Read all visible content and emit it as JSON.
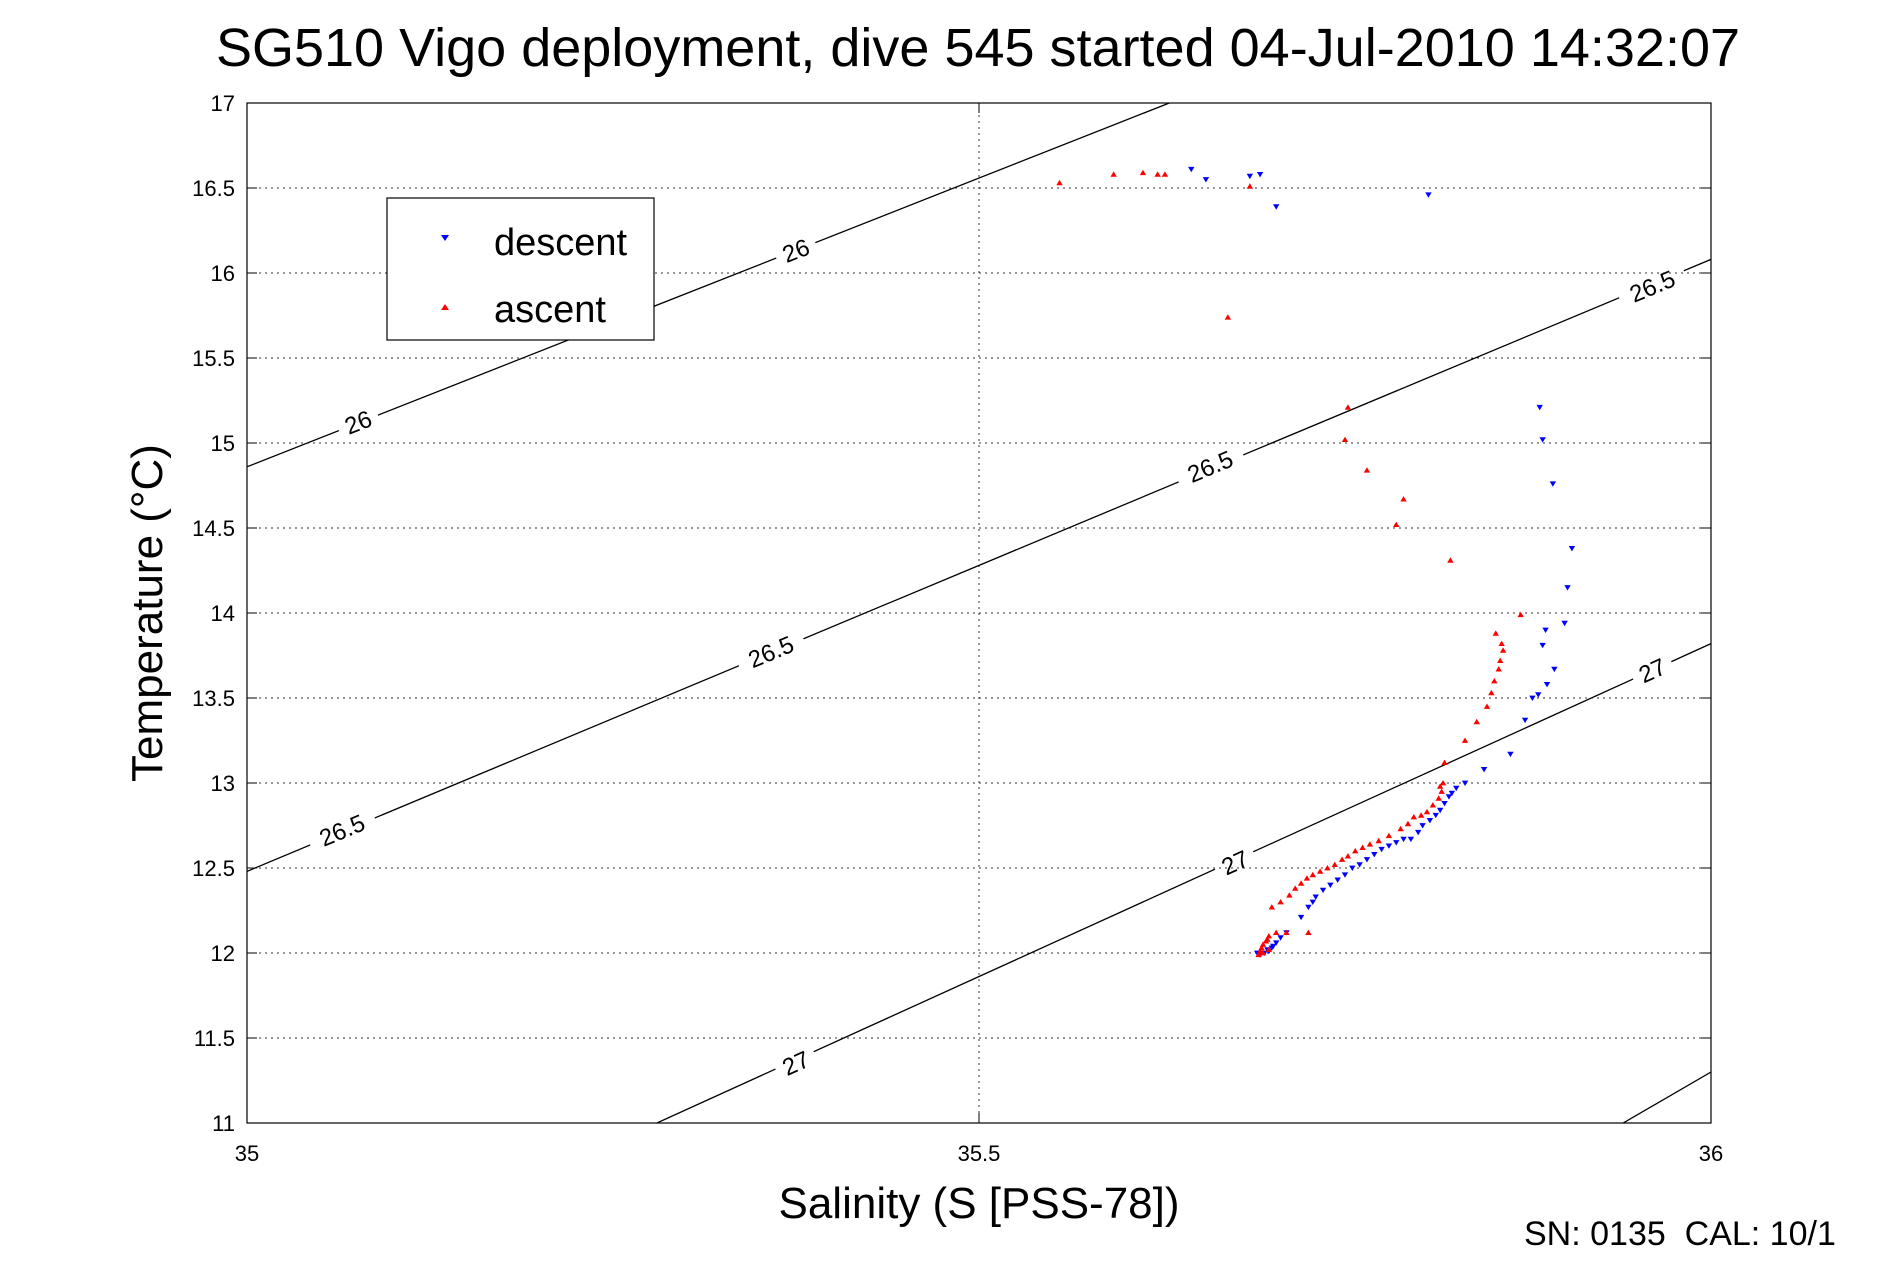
{
  "chart_data": {
    "type": "scatter",
    "title": "SG510 Vigo deployment, dive 545 started 04-Jul-2010 14:32:07",
    "xlabel": "Salinity (S [PSS-78])",
    "ylabel": "Temperature (°C)",
    "xlim": [
      35,
      36
    ],
    "ylim": [
      11,
      17
    ],
    "x_ticks": [
      "35",
      "35.5",
      "36"
    ],
    "y_ticks": [
      "11",
      "11.5",
      "12",
      "12.5",
      "13",
      "13.5",
      "14",
      "14.5",
      "15",
      "15.5",
      "16",
      "16.5",
      "17"
    ],
    "grid": true,
    "legend": {
      "placement": "top-left"
    },
    "footer": "SN: 0135  CAL: 10/1",
    "contours": [
      {
        "label": "26",
        "points": [
          [
            35,
            14.86
          ],
          [
            35.63,
            17
          ]
        ],
        "label_positions": [
          [
            35.076,
            15.12
          ],
          [
            35.375,
            16.13
          ]
        ]
      },
      {
        "label": "26.5",
        "points": [
          [
            35,
            12.48
          ],
          [
            36,
            16.08
          ]
        ],
        "label_positions": [
          [
            35.065,
            12.72
          ],
          [
            35.358,
            13.77
          ],
          [
            35.658,
            14.86
          ],
          [
            35.96,
            15.92
          ]
        ]
      },
      {
        "label": "27",
        "points": [
          [
            35.28,
            11
          ],
          [
            36,
            13.82
          ]
        ],
        "label_positions": [
          [
            35.375,
            11.35
          ],
          [
            35.675,
            12.53
          ],
          [
            35.96,
            13.66
          ]
        ]
      },
      {
        "label": "",
        "points": [
          [
            35.94,
            11
          ],
          [
            36,
            11.3
          ]
        ],
        "label_positions": []
      }
    ],
    "series": [
      {
        "name": "descent",
        "marker": "triangle-down",
        "color": "#0000ff",
        "points": [
          [
            35.645,
            16.61
          ],
          [
            35.655,
            16.55
          ],
          [
            35.685,
            16.57
          ],
          [
            35.692,
            16.58
          ],
          [
            35.703,
            16.39
          ],
          [
            35.807,
            16.46
          ],
          [
            35.883,
            15.21
          ],
          [
            35.885,
            15.02
          ],
          [
            35.892,
            14.76
          ],
          [
            35.905,
            14.38
          ],
          [
            35.902,
            14.15
          ],
          [
            35.9,
            13.94
          ],
          [
            35.887,
            13.9
          ],
          [
            35.885,
            13.81
          ],
          [
            35.893,
            13.67
          ],
          [
            35.888,
            13.58
          ],
          [
            35.882,
            13.52
          ],
          [
            35.878,
            13.5
          ],
          [
            35.873,
            13.37
          ],
          [
            35.863,
            13.17
          ],
          [
            35.845,
            13.08
          ],
          [
            35.832,
            13.0
          ],
          [
            35.826,
            12.97
          ],
          [
            35.823,
            12.94
          ],
          [
            35.821,
            12.92
          ],
          [
            35.818,
            12.88
          ],
          [
            35.815,
            12.84
          ],
          [
            35.812,
            12.81
          ],
          [
            35.808,
            12.78
          ],
          [
            35.803,
            12.75
          ],
          [
            35.8,
            12.71
          ],
          [
            35.795,
            12.67
          ],
          [
            35.79,
            12.67
          ],
          [
            35.785,
            12.65
          ],
          [
            35.78,
            12.63
          ],
          [
            35.775,
            12.61
          ],
          [
            35.77,
            12.58
          ],
          [
            35.765,
            12.55
          ],
          [
            35.76,
            12.52
          ],
          [
            35.755,
            12.5
          ],
          [
            35.75,
            12.46
          ],
          [
            35.745,
            12.43
          ],
          [
            35.74,
            12.4
          ],
          [
            35.735,
            12.37
          ],
          [
            35.73,
            12.33
          ],
          [
            35.728,
            12.3
          ],
          [
            35.725,
            12.27
          ],
          [
            35.72,
            12.21
          ],
          [
            35.71,
            12.12
          ],
          [
            35.706,
            12.09
          ],
          [
            35.703,
            12.06
          ],
          [
            35.7,
            12.03
          ],
          [
            35.698,
            12.01
          ],
          [
            35.695,
            12.0
          ],
          [
            35.692,
            11.99
          ],
          [
            35.69,
            12.0
          ],
          [
            35.697,
            12.02
          ],
          [
            35.701,
            12.04
          ]
        ]
      },
      {
        "name": "ascent",
        "marker": "triangle-up",
        "color": "#ff0000",
        "points": [
          [
            35.555,
            16.53
          ],
          [
            35.592,
            16.58
          ],
          [
            35.612,
            16.59
          ],
          [
            35.622,
            16.58
          ],
          [
            35.627,
            16.58
          ],
          [
            35.685,
            16.51
          ],
          [
            35.67,
            15.74
          ],
          [
            35.752,
            15.21
          ],
          [
            35.75,
            15.02
          ],
          [
            35.765,
            14.84
          ],
          [
            35.79,
            14.67
          ],
          [
            35.785,
            14.52
          ],
          [
            35.822,
            14.31
          ],
          [
            35.87,
            13.99
          ],
          [
            35.853,
            13.88
          ],
          [
            35.857,
            13.82
          ],
          [
            35.858,
            13.78
          ],
          [
            35.856,
            13.72
          ],
          [
            35.855,
            13.67
          ],
          [
            35.852,
            13.6
          ],
          [
            35.85,
            13.53
          ],
          [
            35.847,
            13.45
          ],
          [
            35.84,
            13.36
          ],
          [
            35.832,
            13.25
          ],
          [
            35.818,
            13.12
          ],
          [
            35.817,
            13.0
          ],
          [
            35.815,
            12.98
          ],
          [
            35.816,
            12.95
          ],
          [
            35.814,
            12.91
          ],
          [
            35.81,
            12.87
          ],
          [
            35.806,
            12.83
          ],
          [
            35.802,
            12.81
          ],
          [
            35.797,
            12.8
          ],
          [
            35.793,
            12.76
          ],
          [
            35.788,
            12.73
          ],
          [
            35.78,
            12.69
          ],
          [
            35.773,
            12.66
          ],
          [
            35.767,
            12.64
          ],
          [
            35.762,
            12.62
          ],
          [
            35.757,
            12.6
          ],
          [
            35.752,
            12.57
          ],
          [
            35.748,
            12.55
          ],
          [
            35.743,
            12.52
          ],
          [
            35.738,
            12.5
          ],
          [
            35.733,
            12.48
          ],
          [
            35.728,
            12.46
          ],
          [
            35.724,
            12.44
          ],
          [
            35.72,
            12.41
          ],
          [
            35.716,
            12.38
          ],
          [
            35.712,
            12.34
          ],
          [
            35.706,
            12.3
          ],
          [
            35.7,
            12.27
          ],
          [
            35.725,
            12.12
          ],
          [
            35.71,
            12.12
          ],
          [
            35.703,
            12.12
          ],
          [
            35.698,
            12.1
          ],
          [
            35.697,
            12.08
          ],
          [
            35.696,
            12.07
          ],
          [
            35.694,
            12.05
          ],
          [
            35.693,
            12.03
          ],
          [
            35.692,
            12.01
          ],
          [
            35.691,
            11.99
          ],
          [
            35.694,
            12.0
          ],
          [
            35.698,
            12.02
          ]
        ]
      }
    ]
  }
}
